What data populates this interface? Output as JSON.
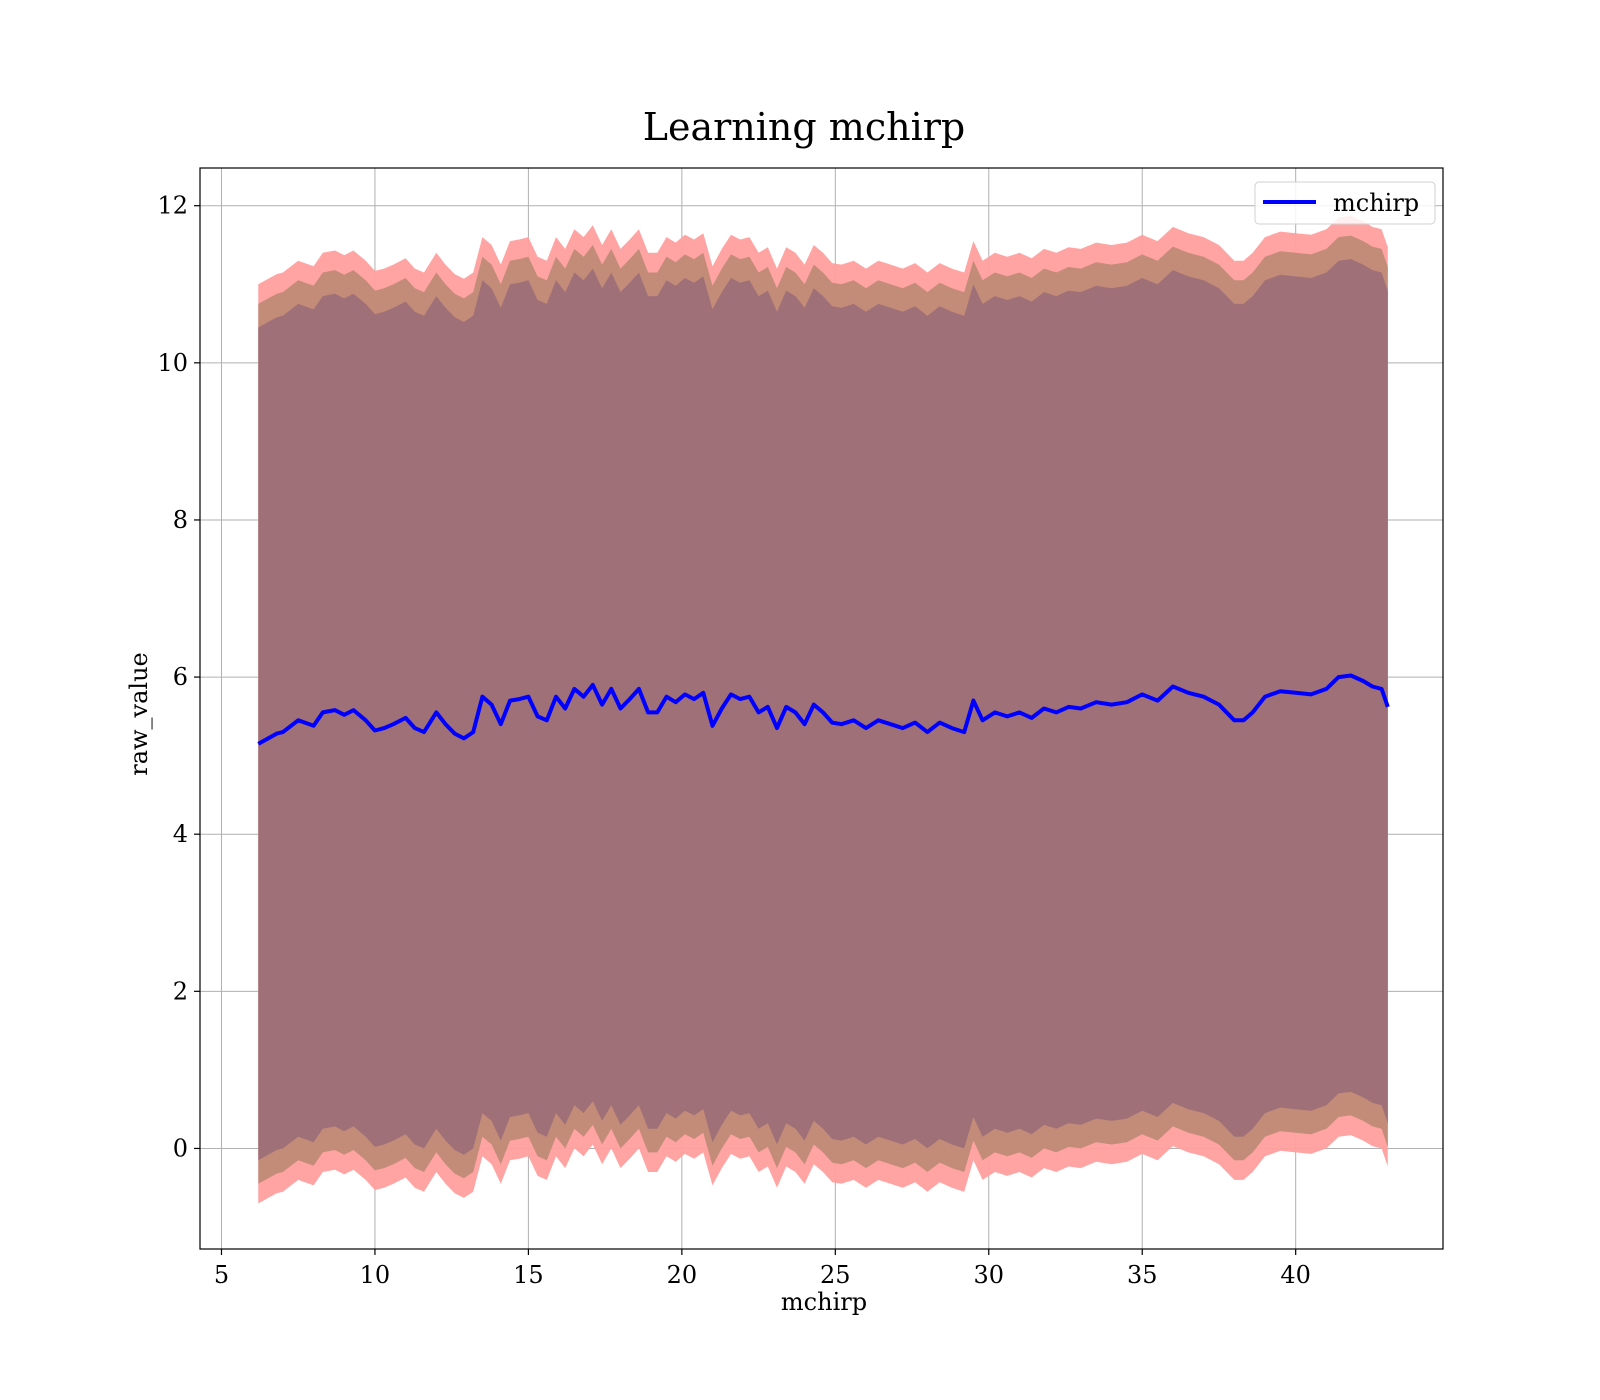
{
  "chart_data": {
    "type": "area",
    "title": "Learning mchirp",
    "xlabel": "mchirp",
    "ylabel": "raw_value",
    "xlim": [
      4.3,
      44.8
    ],
    "ylim": [
      -1.28,
      12.48
    ],
    "xticks": [
      5,
      10,
      15,
      20,
      25,
      30,
      35,
      40
    ],
    "yticks": [
      0,
      2,
      4,
      6,
      8,
      10,
      12
    ],
    "grid": true,
    "legend": {
      "placement": "top-right",
      "entries": [
        "mchirp"
      ]
    },
    "colors": {
      "line": "#0000ff",
      "outer_band": "#ff9e9e",
      "middle_band": "#c08b77",
      "inner_band": "#a07078",
      "grid": "#b0b0b0"
    },
    "x": [
      6.2,
      6.8,
      7.0,
      7.5,
      8.0,
      8.3,
      8.7,
      9.0,
      9.3,
      9.7,
      10.0,
      10.3,
      10.6,
      11.0,
      11.3,
      11.6,
      12.0,
      12.3,
      12.6,
      12.9,
      13.2,
      13.5,
      13.8,
      14.1,
      14.4,
      14.7,
      15.0,
      15.3,
      15.6,
      15.9,
      16.2,
      16.5,
      16.8,
      17.1,
      17.4,
      17.7,
      18.0,
      18.3,
      18.6,
      18.9,
      19.2,
      19.5,
      19.8,
      20.1,
      20.4,
      20.7,
      21.0,
      21.3,
      21.6,
      21.9,
      22.2,
      22.5,
      22.8,
      23.1,
      23.4,
      23.7,
      24.0,
      24.3,
      24.6,
      24.9,
      25.2,
      25.6,
      26.0,
      26.4,
      26.8,
      27.2,
      27.6,
      28.0,
      28.4,
      28.8,
      29.2,
      29.5,
      29.8,
      30.2,
      30.6,
      31.0,
      31.4,
      31.8,
      32.2,
      32.6,
      33.0,
      33.5,
      34.0,
      34.5,
      35.0,
      35.5,
      36.0,
      36.5,
      37.0,
      37.5,
      38.0,
      38.3,
      38.6,
      39.0,
      39.5,
      40.0,
      40.5,
      41.0,
      41.4,
      41.8,
      42.2,
      42.5,
      42.8,
      43.0
    ],
    "series": [
      {
        "name": "mchirp",
        "values": [
          5.15,
          5.28,
          5.3,
          5.45,
          5.38,
          5.55,
          5.58,
          5.52,
          5.58,
          5.45,
          5.32,
          5.35,
          5.4,
          5.48,
          5.35,
          5.3,
          5.55,
          5.4,
          5.28,
          5.22,
          5.3,
          5.75,
          5.65,
          5.4,
          5.7,
          5.72,
          5.75,
          5.5,
          5.45,
          5.75,
          5.6,
          5.85,
          5.75,
          5.9,
          5.65,
          5.85,
          5.6,
          5.72,
          5.85,
          5.55,
          5.55,
          5.75,
          5.68,
          5.78,
          5.72,
          5.8,
          5.38,
          5.6,
          5.78,
          5.72,
          5.75,
          5.55,
          5.62,
          5.35,
          5.62,
          5.55,
          5.4,
          5.65,
          5.55,
          5.42,
          5.4,
          5.45,
          5.35,
          5.45,
          5.4,
          5.35,
          5.42,
          5.3,
          5.42,
          5.35,
          5.3,
          5.7,
          5.45,
          5.55,
          5.5,
          5.55,
          5.48,
          5.6,
          5.55,
          5.62,
          5.6,
          5.68,
          5.65,
          5.68,
          5.78,
          5.7,
          5.88,
          5.8,
          5.75,
          5.65,
          5.45,
          5.45,
          5.55,
          5.75,
          5.82,
          5.8,
          5.78,
          5.85,
          6.0,
          6.02,
          5.95,
          5.88,
          5.85,
          5.62
        ]
      }
    ],
    "band_offsets": {
      "inner": 5.3,
      "middle": 5.6,
      "outer": 5.85
    }
  },
  "legend_label": "mchirp",
  "title_text": "Learning mchirp",
  "xlabel_text": "mchirp",
  "ylabel_text": "raw_value"
}
